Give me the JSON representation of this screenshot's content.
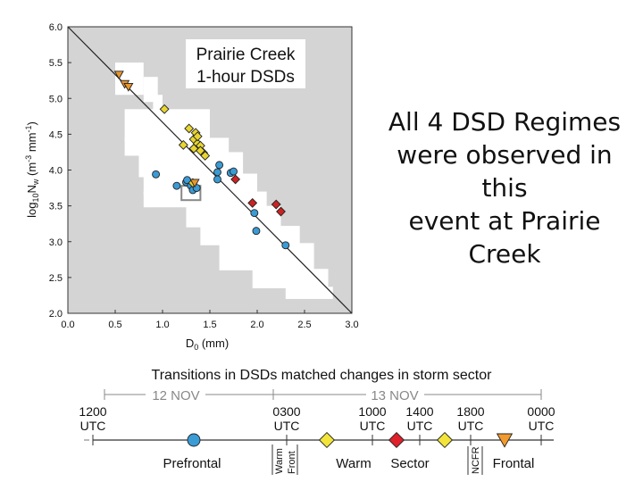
{
  "chart_data": {
    "type": "scatter",
    "title": "Prairie Creek 1-hour DSDs",
    "title_lines": [
      "Prairie Creek",
      "1-hour DSDs"
    ],
    "xlabel": "D0 (mm)",
    "xlabel_main": "D",
    "xlabel_sub": "0",
    "xlabel_rest": " (mm)",
    "ylabel": "log10Nw (m^-3 mm^-1)",
    "ylabel_parts": {
      "log": "log",
      "sub10": "10",
      "n": "N",
      "subw": "w",
      "unit": " (m",
      "exp1": "-3",
      "mid": " mm",
      "exp2": "-1",
      "end": ")"
    },
    "xlim": [
      0.0,
      3.0
    ],
    "ylim": [
      2.0,
      6.0
    ],
    "xticks": [
      "0.0",
      "0.5",
      "1.0",
      "1.5",
      "2.0",
      "2.5",
      "3.0"
    ],
    "yticks": [
      "2.0",
      "2.5",
      "3.0",
      "3.5",
      "4.0",
      "4.5",
      "5.0",
      "5.5",
      "6.0"
    ],
    "xtick_values": [
      0,
      0.5,
      1.0,
      1.5,
      2.0,
      2.5,
      3.0
    ],
    "ytick_values": [
      2.0,
      2.5,
      3.0,
      3.5,
      4.0,
      4.5,
      5.0,
      5.5,
      6.0
    ],
    "reference_line": {
      "x": [
        0.0,
        3.0
      ],
      "y": [
        6.0,
        2.0
      ]
    },
    "background_color": "#d4d4d4",
    "highlight_color": "#ffffff",
    "series": [
      {
        "marker": "circle",
        "color": "#3a9bd5",
        "points": [
          [
            0.93,
            3.94
          ],
          [
            1.15,
            3.78
          ],
          [
            1.25,
            3.83
          ],
          [
            1.26,
            3.86
          ],
          [
            1.3,
            3.78
          ],
          [
            1.32,
            3.72
          ],
          [
            1.36,
            3.75
          ],
          [
            1.58,
            3.97
          ],
          [
            1.6,
            4.07
          ],
          [
            1.58,
            3.87
          ],
          [
            1.72,
            3.96
          ],
          [
            1.75,
            3.98
          ],
          [
            1.97,
            3.4
          ],
          [
            1.99,
            3.15
          ],
          [
            2.3,
            2.95
          ]
        ]
      },
      {
        "marker": "diamond",
        "color": "#e8d530",
        "points": [
          [
            1.02,
            4.85
          ],
          [
            1.22,
            4.35
          ],
          [
            1.28,
            4.58
          ],
          [
            1.33,
            4.43
          ],
          [
            1.37,
            4.37
          ],
          [
            1.33,
            4.3
          ],
          [
            1.4,
            4.34
          ],
          [
            1.35,
            4.52
          ],
          [
            1.37,
            4.47
          ],
          [
            1.43,
            4.24
          ],
          [
            1.45,
            4.2
          ],
          [
            1.4,
            4.27
          ],
          [
            1.32,
            3.82
          ]
        ]
      },
      {
        "marker": "diamond",
        "color": "#cc2222",
        "points": [
          [
            1.77,
            3.87
          ],
          [
            1.95,
            3.54
          ],
          [
            2.2,
            3.52
          ],
          [
            2.25,
            3.42
          ]
        ]
      },
      {
        "marker": "triangle-down",
        "color": "#e8962d",
        "points": [
          [
            0.54,
            5.33
          ],
          [
            0.6,
            5.2
          ],
          [
            0.64,
            5.16
          ],
          [
            1.34,
            3.82
          ]
        ]
      }
    ],
    "box": {
      "x": [
        1.2,
        1.4
      ],
      "y": [
        3.58,
        3.78
      ]
    }
  },
  "headline": {
    "lines": [
      "All 4 DSD Regimes",
      "were observed in this",
      "event at Prairie Creek"
    ]
  },
  "timeline": {
    "title": "Transitions in DSDs matched changes in storm sector",
    "date_labels": [
      "12 NOV",
      "13 NOV"
    ],
    "times": [
      {
        "top": "1200",
        "bottom": "UTC",
        "pos": 0
      },
      {
        "top": "0300",
        "bottom": "UTC",
        "pos": 1
      },
      {
        "top": "1000",
        "bottom": "UTC",
        "pos": 2
      },
      {
        "top": "1400",
        "bottom": "UTC",
        "pos": 3
      },
      {
        "top": "1800",
        "bottom": "UTC",
        "pos": 4
      },
      {
        "top": "0000",
        "bottom": "UTC",
        "pos": 5
      }
    ],
    "regimes": [
      {
        "label": "Prefrontal",
        "marker": "circle",
        "color": "#3a9bd5"
      },
      {
        "label": "Warm Front",
        "lines": [
          "Warm",
          "Front"
        ],
        "marker": "diamond",
        "color": "#f2e43a"
      },
      {
        "label": "Warm",
        "marker": "none"
      },
      {
        "label": "Sector",
        "marker": "diamond",
        "color": "#e0202a"
      },
      {
        "marker": "diamond",
        "color": "#f2e43a"
      },
      {
        "label": "NCFR",
        "marker": "none"
      },
      {
        "label": "Frontal",
        "marker": "triangle-down",
        "color": "#f29a2e"
      }
    ]
  }
}
